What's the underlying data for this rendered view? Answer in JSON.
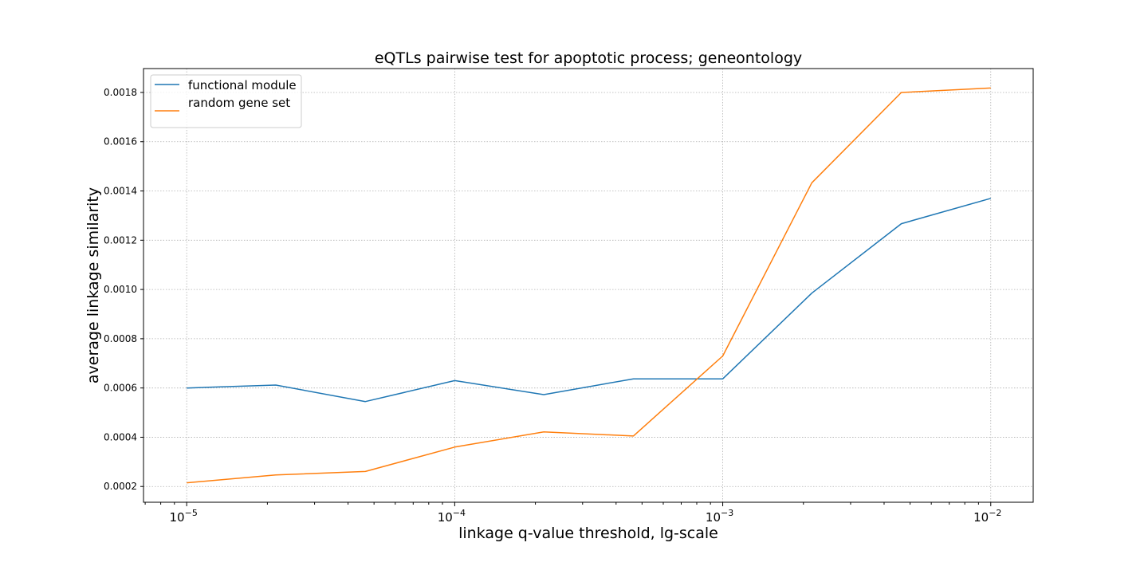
{
  "chart_data": {
    "type": "line",
    "title": "eQTLs pairwise test for apoptotic process; geneontology",
    "xlabel": "linkage q-value threshold, lg-scale",
    "ylabel": "average linkage similarity",
    "xscale": "log",
    "xlim": [
      6.9e-06,
      0.0144
    ],
    "ylim": [
      0.000136,
      0.001897
    ],
    "grid": true,
    "legend_position": "top-left",
    "x": [
      1e-05,
      2.15e-05,
      4.64e-05,
      0.0001,
      0.000215,
      0.000464,
      0.001,
      0.00215,
      0.00464,
      0.01
    ],
    "x_ticks": [
      {
        "value": 1e-05,
        "exp": "−5"
      },
      {
        "value": 0.0001,
        "exp": "−4"
      },
      {
        "value": 0.001,
        "exp": "−3"
      },
      {
        "value": 0.01,
        "exp": "−2"
      }
    ],
    "x_tick_base": "10",
    "y_ticks": [
      "0.0002",
      "0.0004",
      "0.0006",
      "0.0008",
      "0.0010",
      "0.0012",
      "0.0014",
      "0.0016",
      "0.0018"
    ],
    "series": [
      {
        "name": "functional module",
        "color": "#1f77b4",
        "values": [
          0.0006,
          0.000612,
          0.000545,
          0.00063,
          0.000573,
          0.000637,
          0.000637,
          0.000985,
          0.001267,
          0.00137
        ]
      },
      {
        "name": "random gene set",
        "color": "#ff7f0e",
        "values": [
          0.000215,
          0.000247,
          0.000261,
          0.00036,
          0.000422,
          0.000405,
          0.00073,
          0.001433,
          0.0018,
          0.001818
        ]
      }
    ]
  }
}
